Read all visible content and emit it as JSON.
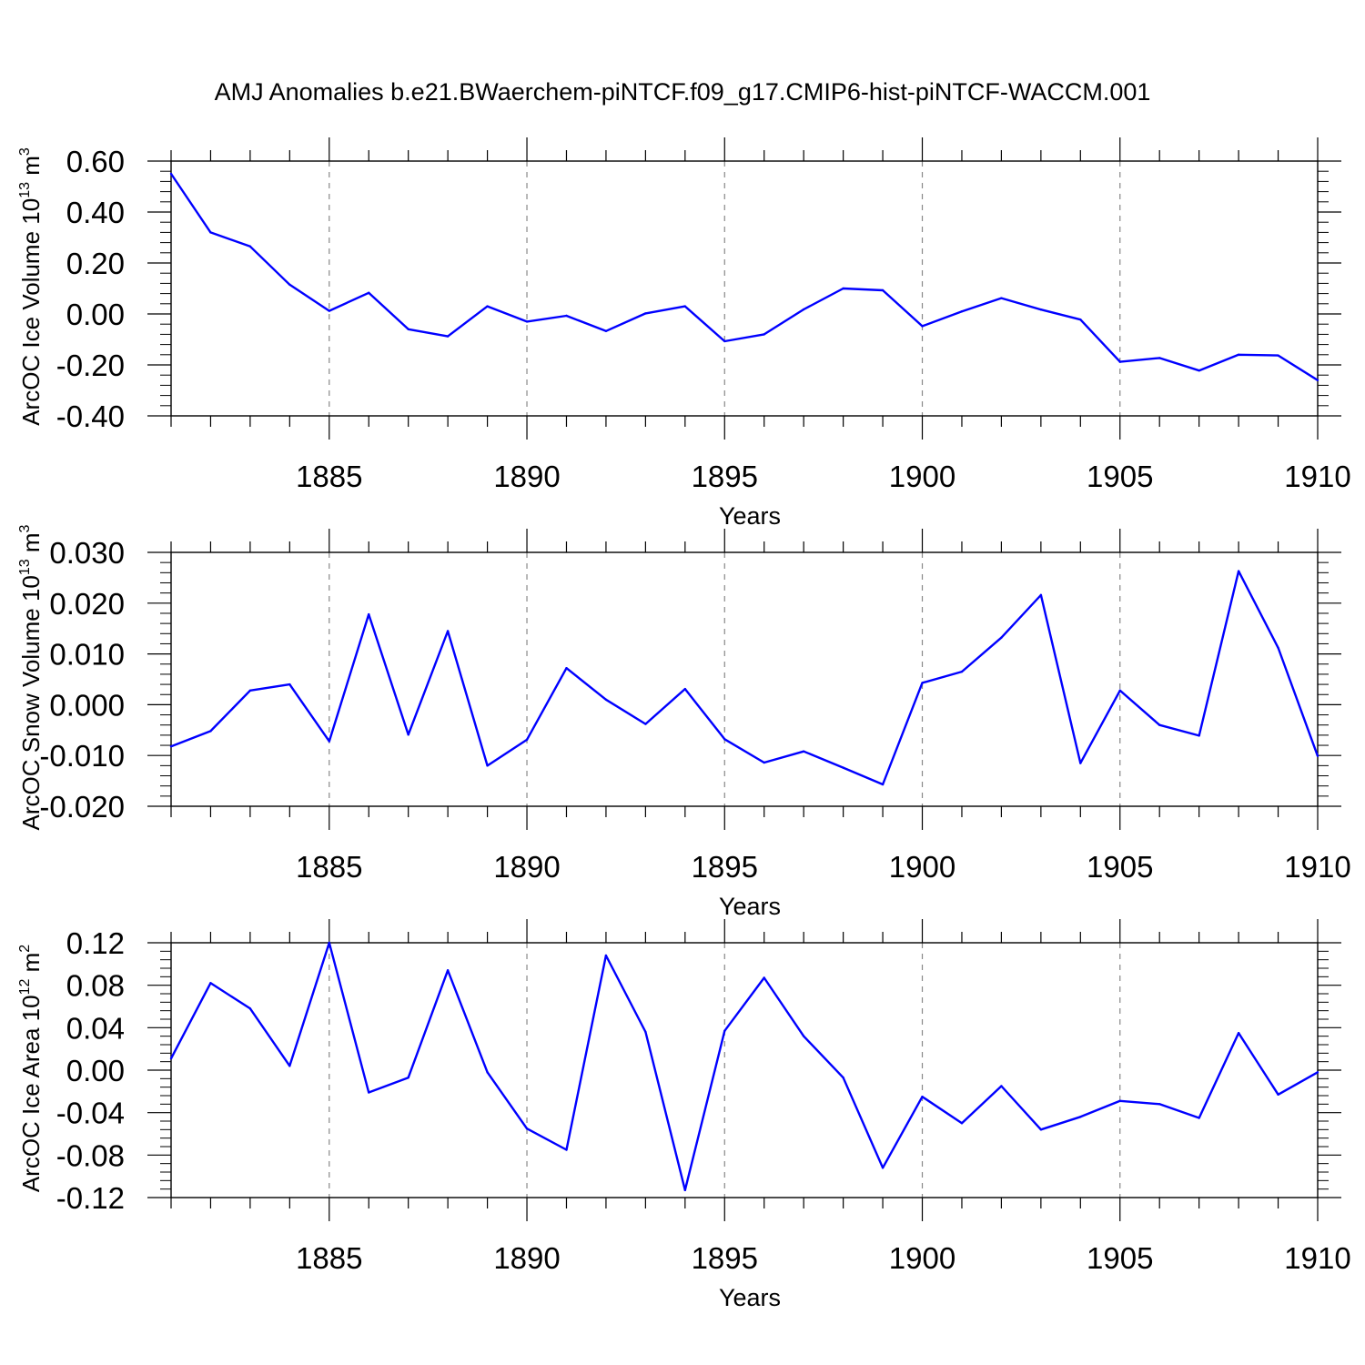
{
  "title": "AMJ Anomalies b.e21.BWaerchem-piNTCF.f09_g17.CMIP6-hist-piNTCF-WACCM.001",
  "colors": {
    "line": "#0000ff",
    "axis": "#000000",
    "grid": "#888888"
  },
  "chart_data": [
    {
      "type": "line",
      "ylabel_text": "ArcOC Ice Volume 10",
      "ylabel_exp": "13",
      "ylabel_unit": " m",
      "ylabel_unit_exp": "3",
      "xlabel": "Years",
      "xlim": [
        1881,
        1910
      ],
      "ylim": [
        -0.4,
        0.6
      ],
      "ytick_values": [
        -0.4,
        -0.2,
        0.0,
        0.2,
        0.4,
        0.6
      ],
      "ytick_labels": [
        "-0.40",
        "-0.20",
        "0.00",
        "0.20",
        "0.40",
        "0.60"
      ],
      "xtick_values": [
        1885,
        1890,
        1895,
        1900,
        1905,
        1910
      ],
      "xtick_labels": [
        "1885",
        "1890",
        "1895",
        "1900",
        "1905",
        "1910"
      ],
      "grid": "dashed vertical lines at major x ticks",
      "series": [
        {
          "name": "Ice Volume anomaly",
          "x": [
            1881,
            1882,
            1883,
            1884,
            1885,
            1886,
            1887,
            1888,
            1889,
            1890,
            1891,
            1892,
            1893,
            1894,
            1895,
            1896,
            1897,
            1898,
            1899,
            1900,
            1901,
            1902,
            1903,
            1904,
            1905,
            1906,
            1907,
            1908,
            1909,
            1910
          ],
          "values": [
            0.55,
            0.32,
            0.265,
            0.115,
            0.012,
            0.083,
            -0.06,
            -0.088,
            0.03,
            -0.03,
            -0.007,
            -0.067,
            0.002,
            0.03,
            -0.107,
            -0.08,
            0.018,
            0.1,
            0.093,
            -0.048,
            0.01,
            0.062,
            0.017,
            -0.022,
            -0.188,
            -0.173,
            -0.222,
            -0.16,
            -0.163,
            -0.26
          ]
        }
      ]
    },
    {
      "type": "line",
      "ylabel_text": "ArcOC Snow Volume 10",
      "ylabel_exp": "13",
      "ylabel_unit": " m",
      "ylabel_unit_exp": "3",
      "xlabel": "Years",
      "xlim": [
        1881,
        1910
      ],
      "ylim": [
        -0.02,
        0.03
      ],
      "ytick_values": [
        -0.02,
        -0.01,
        0.0,
        0.01,
        0.02,
        0.03
      ],
      "ytick_labels": [
        "-0.020",
        "-0.010",
        "0.000",
        "0.010",
        "0.020",
        "0.030"
      ],
      "xtick_values": [
        1885,
        1890,
        1895,
        1900,
        1905,
        1910
      ],
      "xtick_labels": [
        "1885",
        "1890",
        "1895",
        "1900",
        "1905",
        "1910"
      ],
      "grid": "dashed vertical lines at major x ticks",
      "series": [
        {
          "name": "Snow Volume anomaly",
          "x": [
            1881,
            1882,
            1883,
            1884,
            1885,
            1886,
            1887,
            1888,
            1889,
            1890,
            1891,
            1892,
            1893,
            1894,
            1895,
            1896,
            1897,
            1898,
            1899,
            1900,
            1901,
            1902,
            1903,
            1904,
            1905,
            1906,
            1907,
            1908,
            1909,
            1910
          ],
          "values": [
            -0.0082,
            -0.0052,
            0.0028,
            0.004,
            -0.0072,
            0.0178,
            -0.0059,
            0.0145,
            -0.012,
            -0.0069,
            0.0072,
            0.001,
            -0.0038,
            0.0031,
            -0.0068,
            -0.0114,
            -0.0092,
            -0.0124,
            -0.0157,
            0.0043,
            0.0065,
            0.0132,
            0.0216,
            -0.0115,
            0.0028,
            -0.004,
            -0.0061,
            0.0263,
            0.0112,
            -0.0101
          ]
        }
      ]
    },
    {
      "type": "line",
      "ylabel_text": "ArcOC Ice Area 10",
      "ylabel_exp": "12",
      "ylabel_unit": " m",
      "ylabel_unit_exp": "2",
      "xlabel": "Years",
      "xlim": [
        1881,
        1910
      ],
      "ylim": [
        -0.12,
        0.12
      ],
      "ytick_values": [
        -0.12,
        -0.08,
        -0.04,
        0.0,
        0.04,
        0.08,
        0.12
      ],
      "ytick_labels": [
        "-0.12",
        "-0.08",
        "-0.04",
        "0.00",
        "0.04",
        "0.08",
        "0.12"
      ],
      "xtick_values": [
        1885,
        1890,
        1895,
        1900,
        1905,
        1910
      ],
      "xtick_labels": [
        "1885",
        "1890",
        "1895",
        "1900",
        "1905",
        "1910"
      ],
      "grid": "dashed vertical lines at major x ticks",
      "series": [
        {
          "name": "Ice Area anomaly",
          "x": [
            1881,
            1882,
            1883,
            1884,
            1885,
            1886,
            1887,
            1888,
            1889,
            1890,
            1891,
            1892,
            1893,
            1894,
            1895,
            1896,
            1897,
            1898,
            1899,
            1900,
            1901,
            1902,
            1903,
            1904,
            1905,
            1906,
            1907,
            1908,
            1909,
            1910
          ],
          "values": [
            0.011,
            0.082,
            0.058,
            0.004,
            0.12,
            -0.021,
            -0.007,
            0.094,
            -0.002,
            -0.055,
            -0.075,
            0.108,
            0.036,
            -0.113,
            0.037,
            0.087,
            0.032,
            -0.007,
            -0.092,
            -0.025,
            -0.05,
            -0.015,
            -0.056,
            -0.044,
            -0.029,
            -0.032,
            -0.045,
            0.035,
            -0.023,
            -0.002
          ]
        }
      ]
    }
  ]
}
